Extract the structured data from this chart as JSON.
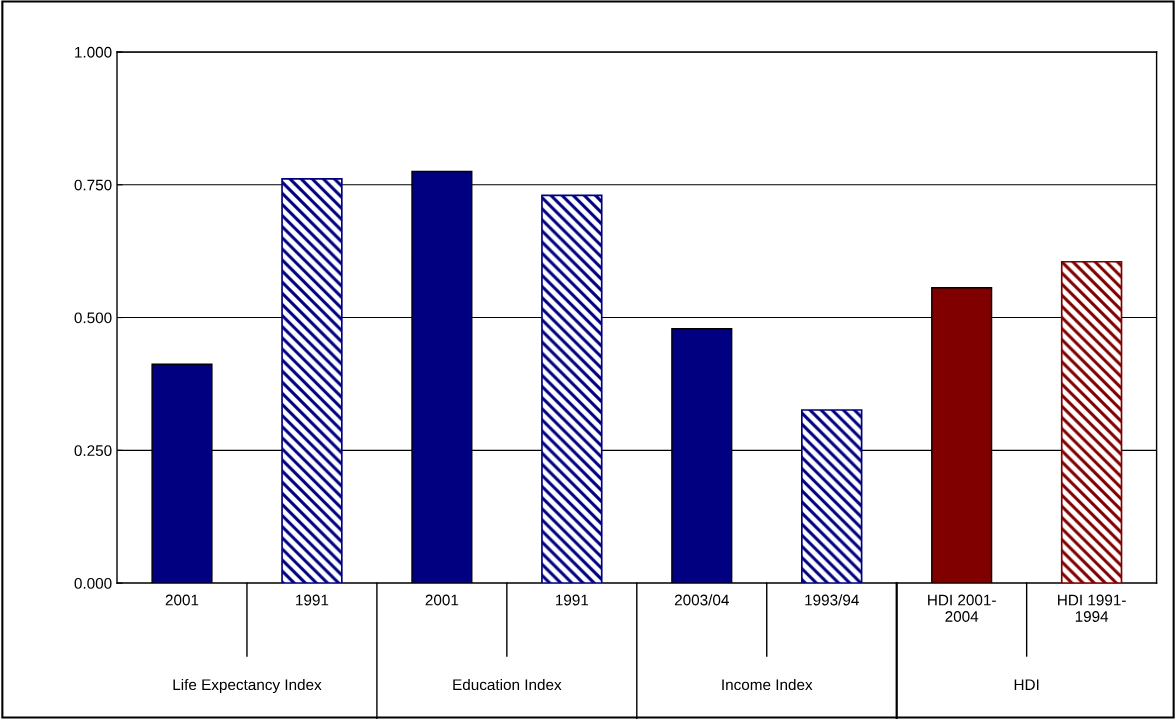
{
  "chart_data": {
    "type": "bar",
    "categories": [
      "2001",
      "1991",
      "2001",
      "1991",
      "2003/04",
      "1993/94",
      "HDI 2001-\n2004",
      "HDI 1991-\n1994"
    ],
    "series": [
      {
        "colors": [
          "#000080",
          null,
          "#000080",
          null,
          "#000080",
          null,
          "#800000",
          null
        ],
        "values": [
          0.412,
          null,
          0.775,
          null,
          0.479,
          null,
          0.556,
          null
        ]
      },
      {
        "colors": [
          null,
          "#000080",
          null,
          "#000080",
          null,
          "#000080",
          null,
          "#800000"
        ],
        "values": [
          null,
          0.761,
          null,
          0.73,
          null,
          0.326,
          null,
          0.605
        ]
      }
    ],
    "annotations": [
      "Life Expectancy Index",
      "Education Index",
      "Income Index",
      "HDI"
    ],
    "ylim": [
      0,
      1
    ],
    "yticks": [
      {
        "value": 0,
        "label": "0.000"
      },
      {
        "value": 0.25,
        "label": "0.250"
      },
      {
        "value": 0.5,
        "label": "0.500"
      },
      {
        "value": 0.75,
        "label": "0.750"
      },
      {
        "value": 1,
        "label": "1.000"
      }
    ],
    "grid": "y"
  }
}
